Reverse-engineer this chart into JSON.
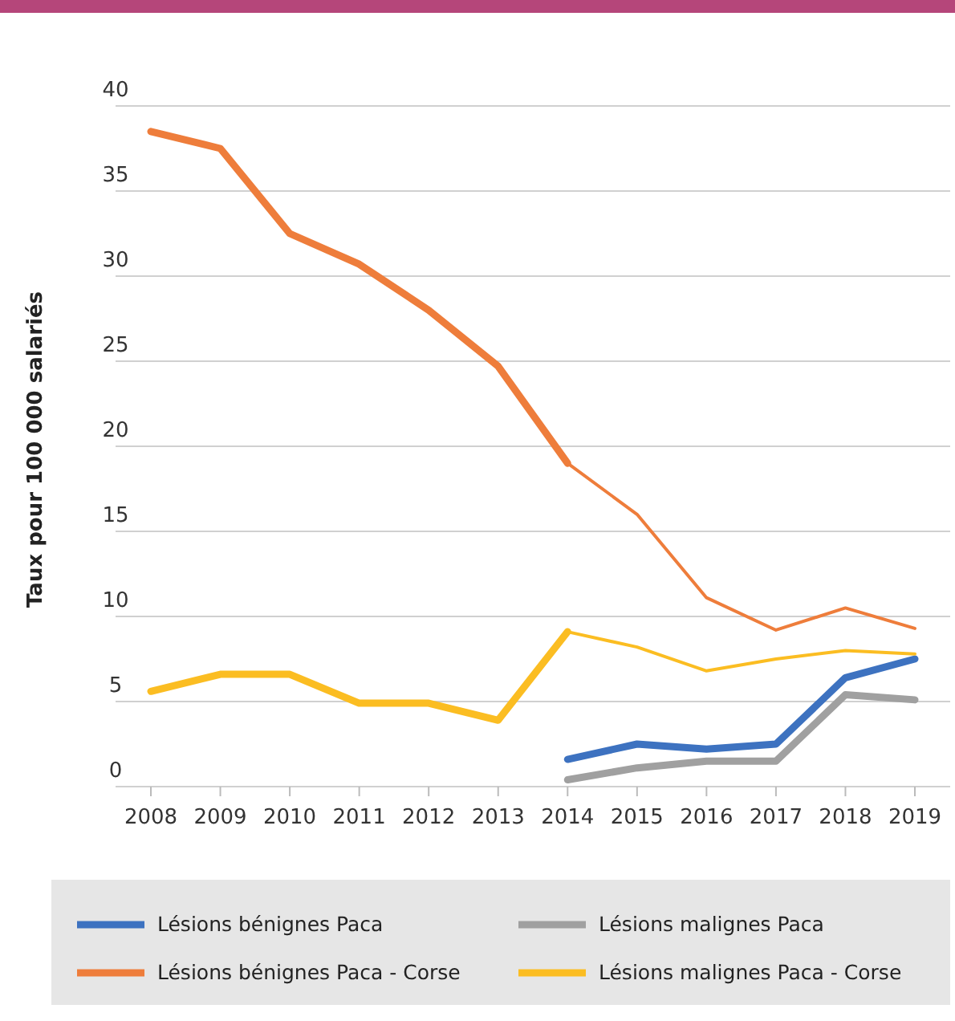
{
  "chart_data": {
    "type": "line",
    "ylabel": "Taux pour 100 000 salariés",
    "categories": [
      "2008",
      "2009",
      "2010",
      "2011",
      "2012",
      "2013",
      "2014",
      "2015",
      "2016",
      "2017",
      "2018",
      "2019"
    ],
    "series": [
      {
        "name": "Lésions bénignes Paca",
        "color": "#3d72c0",
        "values": [
          null,
          null,
          null,
          null,
          null,
          null,
          1.6,
          2.5,
          2.2,
          2.5,
          6.4,
          7.5
        ]
      },
      {
        "name": "Lésions bénignes Paca - Corse",
        "color": "#ee7d3b",
        "values": [
          38.5,
          37.5,
          32.5,
          30.7,
          28,
          24.7,
          19,
          null,
          null,
          null,
          null,
          null
        ]
      },
      {
        "color": "#ee7d3b",
        "values": [
          null,
          null,
          null,
          null,
          null,
          null,
          19,
          16,
          11.1,
          9.2,
          10.5,
          9.3
        ]
      },
      {
        "name": "Lésions malignes Paca",
        "color": "#a0a0a0",
        "values": [
          null,
          null,
          null,
          null,
          null,
          null,
          0.4,
          1.1,
          1.5,
          1.5,
          5.4,
          5.1
        ]
      },
      {
        "name": "Lésions malignes Paca - Corse",
        "color": "#fbbd22",
        "values": [
          5.6,
          6.6,
          6.6,
          4.9,
          4.9,
          3.9,
          9.1,
          null,
          null,
          null,
          null,
          null
        ]
      },
      {
        "color": "#fbbd22",
        "values": [
          null,
          null,
          null,
          null,
          null,
          null,
          9.1,
          8.2,
          6.8,
          7.5,
          8,
          7.8
        ]
      }
    ],
    "ylim": [
      0,
      40
    ],
    "yticks": [
      0,
      5,
      10,
      15,
      20,
      25,
      30,
      35,
      40
    ],
    "grid": "y",
    "legend": "bottom",
    "marker": "none",
    "line_style": "solid"
  }
}
